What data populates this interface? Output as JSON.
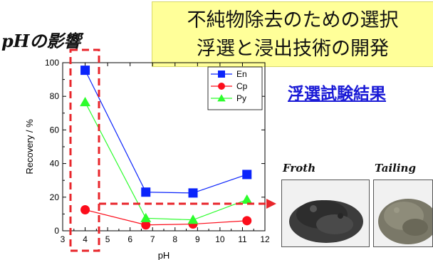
{
  "heading": {
    "title_line1": "不純物除去のための選択",
    "title_line2": "浮選と浸出技術の開発",
    "subtitle": "pHの影響",
    "link": "浮選試験結果"
  },
  "photos": {
    "froth_label": "Froth",
    "tailing_label": "Tailing"
  },
  "chart_data": {
    "type": "line",
    "xlabel": "pH",
    "ylabel": "Recovery / %",
    "xlim": [
      3,
      12
    ],
    "ylim": [
      0,
      100
    ],
    "xticks": [
      3,
      4,
      5,
      6,
      7,
      8,
      9,
      10,
      11,
      12
    ],
    "yticks": [
      0,
      20,
      40,
      60,
      80,
      100
    ],
    "legend_position": "top-right",
    "series": [
      {
        "name": "En",
        "color": "#0b24fb",
        "marker": "square",
        "x": [
          4.0,
          6.7,
          8.8,
          11.2
        ],
        "y": [
          95.5,
          23.0,
          22.5,
          33.5
        ]
      },
      {
        "name": "Cp",
        "color": "#fc0d1b",
        "marker": "circle",
        "x": [
          4.0,
          6.7,
          8.8,
          11.2
        ],
        "y": [
          12.5,
          3.5,
          4.0,
          6.0
        ]
      },
      {
        "name": "Py",
        "color": "#2dfd2d",
        "marker": "triangle",
        "x": [
          4.0,
          6.7,
          8.8,
          11.2
        ],
        "y": [
          76.5,
          7.5,
          6.5,
          18.5
        ]
      }
    ]
  }
}
